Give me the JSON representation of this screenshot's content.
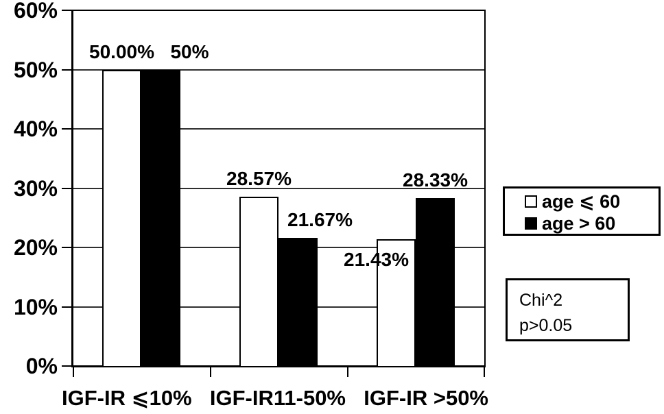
{
  "chart_data": {
    "type": "bar",
    "title": "",
    "categories": [
      "IGF-IR ⩽10%",
      "IGF-IR11-50%",
      "IGF-IR >50%"
    ],
    "series": [
      {
        "name": "age ⩽ 60",
        "swatch": "white",
        "fill": "#ffffff",
        "values": [
          50.0,
          28.57,
          21.43
        ],
        "data_labels": [
          "50.00%",
          "28.57%",
          "21.43%"
        ]
      },
      {
        "name": "age > 60",
        "swatch": "black",
        "fill": "#000000",
        "values": [
          50.0,
          21.67,
          28.33
        ],
        "data_labels": [
          "50%",
          "21.67%",
          "28.33%"
        ]
      }
    ],
    "xlabel": "",
    "ylabel": "",
    "ylim": [
      0,
      60
    ],
    "ytick_step": 10,
    "ytick_labels": [
      "0%",
      "10%",
      "20%",
      "30%",
      "40%",
      "50%",
      "60%"
    ],
    "grid": true,
    "legend_position": "right-outside",
    "annotation": {
      "line1": "Chi^2",
      "line2": "p>0.05"
    }
  },
  "colors": {
    "background": "#ffffff",
    "axis": "#000000",
    "gridline": "#2f2f2f",
    "text": "#000000",
    "bar_age_le_60": "#ffffff",
    "bar_age_gt_60": "#000000"
  }
}
